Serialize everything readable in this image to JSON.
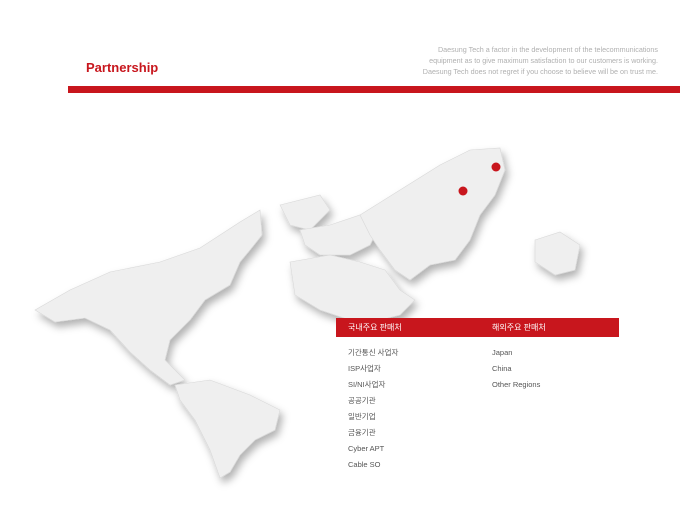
{
  "header": {
    "title": "Partnership",
    "description": [
      "Daesung Tech a factor in the development of the telecommunications",
      "equipment as to give maximum satisfaction to our customers is working.",
      "Daesung Tech does not regret if you choose to believe will be on trust me."
    ]
  },
  "colors": {
    "accent": "#c8161d",
    "map": "#eeeeee"
  },
  "markers": [
    "japan-marker",
    "china-marker"
  ],
  "domestic": {
    "heading": "국내주요 판매처",
    "items": [
      "기간통신 사업자",
      "ISP사업자",
      "SI/NI사업자",
      "공공기관",
      "일반기업",
      "금융기관",
      "Cyber APT",
      "Cable SO"
    ]
  },
  "overseas": {
    "heading": "해외주요 판매처",
    "items": [
      "Japan",
      "China",
      "Other Regions"
    ]
  }
}
